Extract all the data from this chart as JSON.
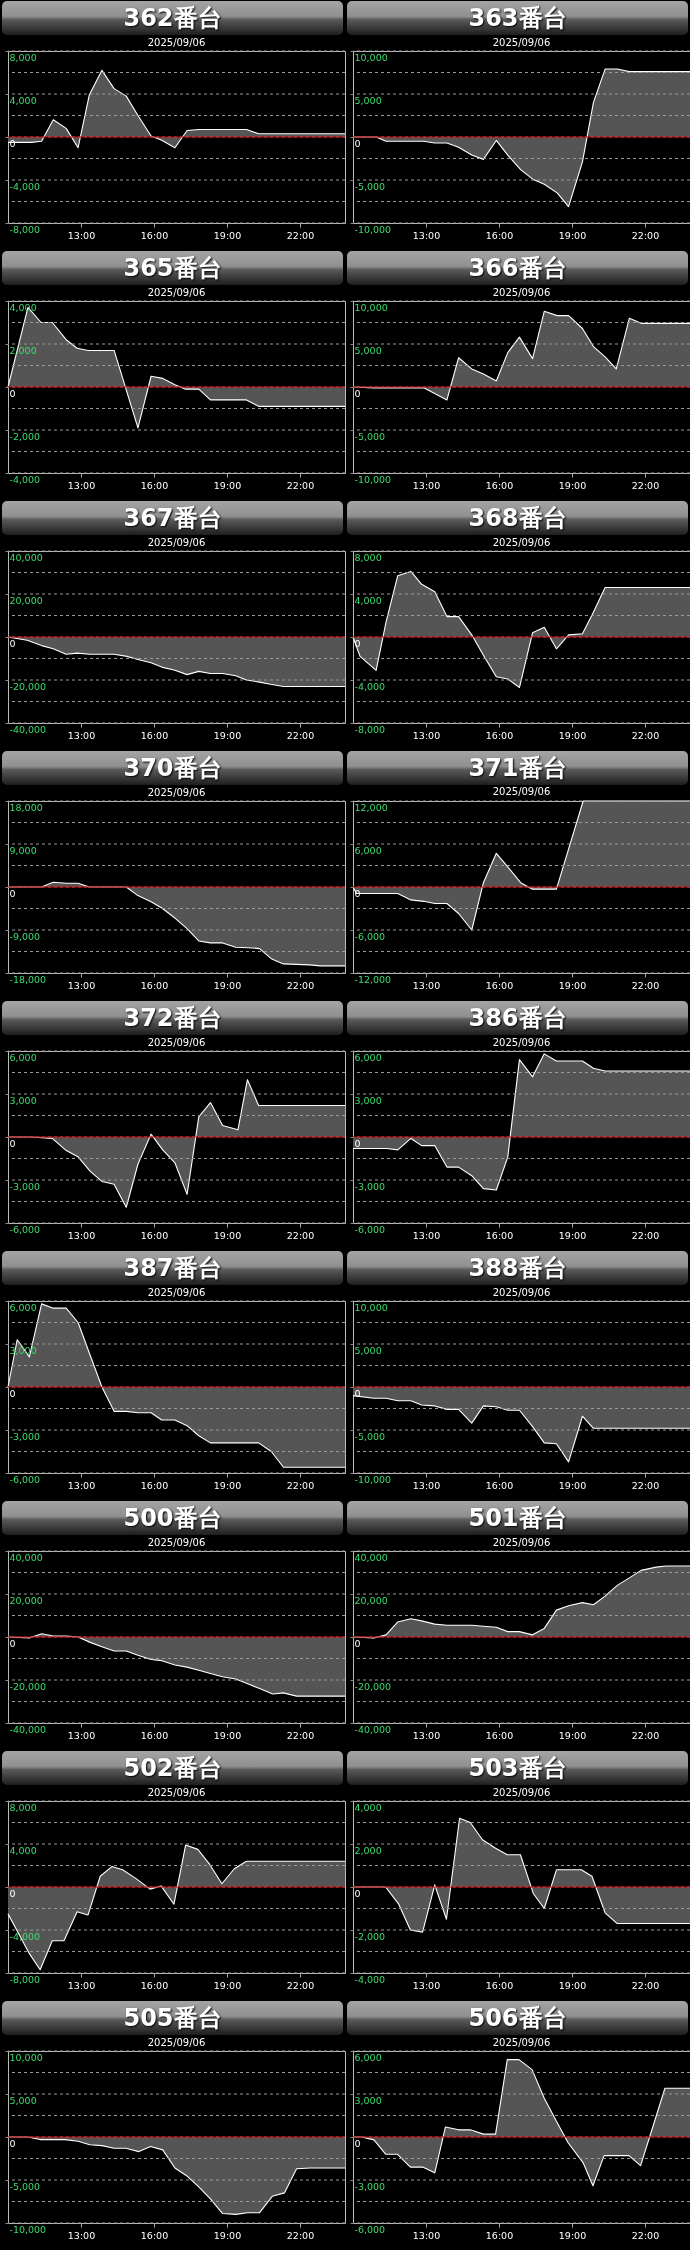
{
  "chart_data": [
    {
      "type": "area",
      "title": "362番台",
      "subtitle": "2025/09/06",
      "color": "#ffffff",
      "grid": "y",
      "xlim": [
        10,
        23.85
      ],
      "xticks": [
        {
          "value": 13,
          "label": "13:00"
        },
        {
          "value": 16,
          "label": "16:00"
        },
        {
          "value": 19,
          "label": "19:00"
        },
        {
          "value": 22,
          "label": "22:00"
        }
      ],
      "ylim": [
        -8000,
        8000
      ],
      "yticks": [
        {
          "value": 8000,
          "label": "8,000"
        },
        {
          "value": 6000,
          "label": null
        },
        {
          "value": 4000,
          "label": "4,000"
        },
        {
          "value": 2000,
          "label": null
        },
        {
          "value": 0,
          "label": "0"
        },
        {
          "value": -2000,
          "label": null
        },
        {
          "value": -4000,
          "label": "-4,000"
        },
        {
          "value": -6000,
          "label": null
        },
        {
          "value": -8000,
          "label": "-8,000"
        }
      ],
      "ref_lines": [
        {
          "axis": "y",
          "value": 0,
          "color": "#cc0000"
        }
      ],
      "x": [
        10,
        10.96,
        11.38,
        11.86,
        12.39,
        12.88,
        13.34,
        13.86,
        14.36,
        14.86,
        15.34,
        15.88,
        16.32,
        16.86,
        17.36,
        17.84,
        19.8,
        20.3,
        23.85
      ],
      "values": [
        -500,
        -500,
        -400,
        1600,
        800,
        -1000,
        3900,
        6200,
        4500,
        3800,
        2000,
        100,
        -300,
        -1000,
        600,
        700,
        700,
        300,
        300
      ]
    },
    {
      "type": "area",
      "title": "363番台",
      "subtitle": "2025/09/06",
      "color": "#ffffff",
      "grid": "y",
      "xlim": [
        10,
        23.85
      ],
      "xticks": [
        {
          "value": 13,
          "label": "13:00"
        },
        {
          "value": 16,
          "label": "16:00"
        },
        {
          "value": 19,
          "label": "19:00"
        },
        {
          "value": 22,
          "label": "22:00"
        }
      ],
      "ylim": [
        -10000,
        10000
      ],
      "yticks": [
        {
          "value": 10000,
          "label": "10,000"
        },
        {
          "value": 7500,
          "label": null
        },
        {
          "value": 5000,
          "label": "5,000"
        },
        {
          "value": 2500,
          "label": null
        },
        {
          "value": 0,
          "label": "0"
        },
        {
          "value": -2500,
          "label": null
        },
        {
          "value": -5000,
          "label": "-5,000"
        },
        {
          "value": -7500,
          "label": null
        },
        {
          "value": -10000,
          "label": "-10,000"
        }
      ],
      "ref_lines": [
        {
          "axis": "y",
          "value": 0,
          "color": "#cc0000"
        }
      ],
      "x": [
        10,
        10.95,
        11.36,
        12.91,
        13.36,
        13.86,
        14.34,
        14.88,
        15.36,
        15.89,
        16.36,
        16.89,
        17.39,
        17.86,
        18.39,
        18.86,
        19.43,
        19.88,
        20.36,
        20.86,
        21.36,
        23.85
      ],
      "values": [
        0,
        0,
        -500,
        -500,
        -700,
        -700,
        -1200,
        -2100,
        -2600,
        -400,
        -2100,
        -3800,
        -4900,
        -5500,
        -6500,
        -8100,
        -2900,
        4000,
        7900,
        7900,
        7600,
        7600
      ]
    },
    {
      "type": "area",
      "title": "365番台",
      "subtitle": "2025/09/06",
      "color": "#ffffff",
      "grid": "y",
      "xlim": [
        10,
        23.85
      ],
      "xticks": [
        {
          "value": 13,
          "label": "13:00"
        },
        {
          "value": 16,
          "label": "16:00"
        },
        {
          "value": 19,
          "label": "19:00"
        },
        {
          "value": 22,
          "label": "22:00"
        }
      ],
      "ylim": [
        -4000,
        4000
      ],
      "yticks": [
        {
          "value": 4000,
          "label": "4,000"
        },
        {
          "value": 3000,
          "label": null
        },
        {
          "value": 2000,
          "label": "2,000"
        },
        {
          "value": 1000,
          "label": null
        },
        {
          "value": 0,
          "label": "0"
        },
        {
          "value": -1000,
          "label": null
        },
        {
          "value": -2000,
          "label": "-2,000"
        },
        {
          "value": -3000,
          "label": null
        },
        {
          "value": -4000,
          "label": "-4,000"
        }
      ],
      "ref_lines": [
        {
          "axis": "y",
          "value": 0,
          "color": "#cc0000"
        }
      ],
      "x": [
        10,
        10.82,
        11.36,
        11.82,
        12.39,
        12.84,
        13.29,
        14.36,
        15.34,
        15.88,
        16.36,
        16.86,
        17.3,
        17.84,
        18.32,
        19.8,
        20.3,
        23.85
      ],
      "values": [
        0,
        3700,
        3000,
        3000,
        2200,
        1800,
        1700,
        1700,
        -1900,
        500,
        400,
        100,
        -100,
        -100,
        -600,
        -600,
        -900,
        -900
      ]
    },
    {
      "type": "area",
      "title": "366番台",
      "subtitle": "2025/09/06",
      "color": "#ffffff",
      "grid": "y",
      "xlim": [
        10,
        23.85
      ],
      "xticks": [
        {
          "value": 13,
          "label": "13:00"
        },
        {
          "value": 16,
          "label": "16:00"
        },
        {
          "value": 19,
          "label": "19:00"
        },
        {
          "value": 22,
          "label": "22:00"
        }
      ],
      "ylim": [
        -10000,
        10000
      ],
      "yticks": [
        {
          "value": 10000,
          "label": "10,000"
        },
        {
          "value": 7500,
          "label": null
        },
        {
          "value": 5000,
          "label": "5,000"
        },
        {
          "value": 2500,
          "label": null
        },
        {
          "value": 0,
          "label": "0"
        },
        {
          "value": -2500,
          "label": null
        },
        {
          "value": -5000,
          "label": "-5,000"
        },
        {
          "value": -7500,
          "label": null
        },
        {
          "value": -10000,
          "label": "-10,000"
        }
      ],
      "ref_lines": [
        {
          "axis": "y",
          "value": 0,
          "color": "#cc0000"
        }
      ],
      "x": [
        10,
        10.86,
        12.91,
        13.86,
        14.34,
        14.88,
        15.36,
        15.89,
        16.36,
        16.84,
        17.38,
        17.86,
        18.39,
        18.86,
        19.43,
        19.88,
        20.36,
        20.82,
        21.36,
        21.84,
        23.85
      ],
      "values": [
        0,
        -100,
        -100,
        -1500,
        3400,
        2100,
        1500,
        700,
        4000,
        5800,
        3300,
        8800,
        8300,
        8300,
        6800,
        4700,
        3500,
        2100,
        8000,
        7400,
        7400
      ]
    },
    {
      "type": "area",
      "title": "367番台",
      "subtitle": "2025/09/06",
      "color": "#ffffff",
      "grid": "y",
      "xlim": [
        10,
        23.85
      ],
      "xticks": [
        {
          "value": 13,
          "label": "13:00"
        },
        {
          "value": 16,
          "label": "16:00"
        },
        {
          "value": 19,
          "label": "19:00"
        },
        {
          "value": 22,
          "label": "22:00"
        }
      ],
      "ylim": [
        -40000,
        40000
      ],
      "yticks": [
        {
          "value": 40000,
          "label": "40,000"
        },
        {
          "value": 30000,
          "label": null
        },
        {
          "value": 20000,
          "label": "20,000"
        },
        {
          "value": 10000,
          "label": null
        },
        {
          "value": 0,
          "label": "0"
        },
        {
          "value": -10000,
          "label": null
        },
        {
          "value": -20000,
          "label": "-20,000"
        },
        {
          "value": -30000,
          "label": null
        },
        {
          "value": -40000,
          "label": "-40,000"
        }
      ],
      "ref_lines": [
        {
          "axis": "y",
          "value": 0,
          "color": "#cc0000"
        }
      ],
      "x": [
        10,
        10.79,
        11.38,
        11.86,
        12.39,
        12.84,
        13.38,
        14.36,
        14.89,
        15.34,
        15.88,
        16.32,
        16.86,
        17.36,
        17.84,
        18.32,
        18.82,
        19.36,
        19.8,
        20.34,
        20.79,
        21.32,
        23.85
      ],
      "values": [
        0,
        -1500,
        -4000,
        -5500,
        -8000,
        -7500,
        -8000,
        -8000,
        -9000,
        -10500,
        -12000,
        -14000,
        -15500,
        -17500,
        -16000,
        -17000,
        -17000,
        -18000,
        -20000,
        -21000,
        -22000,
        -23000,
        -23000
      ]
    },
    {
      "type": "area",
      "title": "368番台",
      "subtitle": "2025/09/06",
      "color": "#ffffff",
      "grid": "y",
      "xlim": [
        10,
        23.85
      ],
      "xticks": [
        {
          "value": 13,
          "label": "13:00"
        },
        {
          "value": 16,
          "label": "16:00"
        },
        {
          "value": 19,
          "label": "19:00"
        },
        {
          "value": 22,
          "label": "22:00"
        }
      ],
      "ylim": [
        -8000,
        8000
      ],
      "yticks": [
        {
          "value": 8000,
          "label": "8,000"
        },
        {
          "value": 6000,
          "label": null
        },
        {
          "value": 4000,
          "label": "4,000"
        },
        {
          "value": 2000,
          "label": null
        },
        {
          "value": 0,
          "label": "0"
        },
        {
          "value": -2000,
          "label": null
        },
        {
          "value": -4000,
          "label": "-4,000"
        },
        {
          "value": -6000,
          "label": null
        },
        {
          "value": -8000,
          "label": "-8,000"
        }
      ],
      "ref_lines": [
        {
          "axis": "y",
          "value": 0,
          "color": "#cc0000"
        }
      ],
      "x": [
        10,
        10.29,
        10.95,
        11.36,
        11.84,
        12.38,
        12.82,
        13.36,
        13.86,
        14.34,
        14.88,
        15.36,
        15.89,
        16.36,
        16.84,
        17.38,
        17.86,
        18.36,
        18.86,
        19.43,
        19.88,
        20.36,
        23.85
      ],
      "values": [
        0,
        -1800,
        -3100,
        1400,
        5700,
        6100,
        4900,
        4200,
        1900,
        1900,
        200,
        -1700,
        -3700,
        -3900,
        -4700,
        400,
        900,
        -1100,
        200,
        300,
        2300,
        4600,
        4600
      ]
    },
    {
      "type": "area",
      "title": "370番台",
      "subtitle": "2025/09/06",
      "color": "#ffffff",
      "grid": "y",
      "xlim": [
        10,
        23.85
      ],
      "xticks": [
        {
          "value": 13,
          "label": "13:00"
        },
        {
          "value": 16,
          "label": "16:00"
        },
        {
          "value": 19,
          "label": "19:00"
        },
        {
          "value": 22,
          "label": "22:00"
        }
      ],
      "ylim": [
        -18000,
        18000
      ],
      "yticks": [
        {
          "value": 18000,
          "label": "18,000"
        },
        {
          "value": 13500,
          "label": null
        },
        {
          "value": 9000,
          "label": "9,000"
        },
        {
          "value": 4500,
          "label": null
        },
        {
          "value": 0,
          "label": "0"
        },
        {
          "value": -4500,
          "label": null
        },
        {
          "value": -9000,
          "label": "-9,000"
        },
        {
          "value": -13500,
          "label": null
        },
        {
          "value": -18000,
          "label": "-18,000"
        }
      ],
      "ref_lines": [
        {
          "axis": "y",
          "value": 0,
          "color": "#cc0000"
        }
      ],
      "x": [
        10,
        11.38,
        11.86,
        12.39,
        12.88,
        13.34,
        14.86,
        15.34,
        15.88,
        16.32,
        16.86,
        17.36,
        17.84,
        18.32,
        18.82,
        19.36,
        19.89,
        20.34,
        20.82,
        21.32,
        21.86,
        22.39,
        22.84,
        23.85
      ],
      "values": [
        0,
        0,
        1000,
        800,
        800,
        0,
        0,
        -1800,
        -3100,
        -4400,
        -6500,
        -8700,
        -11300,
        -11700,
        -11700,
        -12600,
        -12700,
        -12900,
        -15000,
        -16100,
        -16200,
        -16300,
        -16500,
        -16500
      ]
    },
    {
      "type": "area",
      "title": "371番台",
      "subtitle": "2025/09/06",
      "color": "#ffffff",
      "grid": "y",
      "xlim": [
        10,
        23.85
      ],
      "xticks": [
        {
          "value": 13,
          "label": "13:00"
        },
        {
          "value": 16,
          "label": "16:00"
        },
        {
          "value": 19,
          "label": "19:00"
        },
        {
          "value": 22,
          "label": "22:00"
        }
      ],
      "ylim": [
        -12000,
        12000
      ],
      "yticks": [
        {
          "value": 12000,
          "label": "12,000"
        },
        {
          "value": 9000,
          "label": null
        },
        {
          "value": 6000,
          "label": "6,000"
        },
        {
          "value": 3000,
          "label": null
        },
        {
          "value": 0,
          "label": "0"
        },
        {
          "value": -3000,
          "label": null
        },
        {
          "value": -6000,
          "label": "-6,000"
        },
        {
          "value": -9000,
          "label": null
        },
        {
          "value": -12000,
          "label": "-12,000"
        }
      ],
      "ref_lines": [
        {
          "axis": "y",
          "value": 0,
          "color": "#cc0000"
        }
      ],
      "x": [
        10,
        10.14,
        11.84,
        12.38,
        12.91,
        13.36,
        13.86,
        14.34,
        14.88,
        15.36,
        15.89,
        16.36,
        16.89,
        17.38,
        18.36,
        19.46,
        23.85
      ],
      "values": [
        0,
        -900,
        -900,
        -1800,
        -2000,
        -2300,
        -2300,
        -3700,
        -6000,
        600,
        4700,
        2800,
        600,
        -300,
        -300,
        12000,
        12000
      ]
    },
    {
      "type": "area",
      "title": "372番台",
      "subtitle": "2025/09/06",
      "color": "#ffffff",
      "grid": "y",
      "xlim": [
        10,
        23.85
      ],
      "xticks": [
        {
          "value": 13,
          "label": "13:00"
        },
        {
          "value": 16,
          "label": "16:00"
        },
        {
          "value": 19,
          "label": "19:00"
        },
        {
          "value": 22,
          "label": "22:00"
        }
      ],
      "ylim": [
        -6000,
        6000
      ],
      "yticks": [
        {
          "value": 6000,
          "label": "6,000"
        },
        {
          "value": 4500,
          "label": null
        },
        {
          "value": 3000,
          "label": "3,000"
        },
        {
          "value": 1500,
          "label": null
        },
        {
          "value": 0,
          "label": "0"
        },
        {
          "value": -1500,
          "label": null
        },
        {
          "value": -3000,
          "label": "-3,000"
        },
        {
          "value": -4500,
          "label": null
        },
        {
          "value": -6000,
          "label": "-6,000"
        }
      ],
      "ref_lines": [
        {
          "axis": "y",
          "value": 0,
          "color": "#cc0000"
        }
      ],
      "x": [
        10,
        10.96,
        11.82,
        12.36,
        12.89,
        13.38,
        13.86,
        14.36,
        14.86,
        15.34,
        15.88,
        16.36,
        16.86,
        17.36,
        17.84,
        18.32,
        18.82,
        19.45,
        19.84,
        20.3,
        23.85
      ],
      "values": [
        0,
        0,
        -100,
        -900,
        -1400,
        -2400,
        -3100,
        -3300,
        -4900,
        -1900,
        200,
        -900,
        -1800,
        -4000,
        1400,
        2400,
        800,
        500,
        4000,
        2200,
        2200
      ]
    },
    {
      "type": "area",
      "title": "386番台",
      "subtitle": "2025/09/06",
      "color": "#ffffff",
      "grid": "y",
      "xlim": [
        10,
        23.85
      ],
      "xticks": [
        {
          "value": 13,
          "label": "13:00"
        },
        {
          "value": 16,
          "label": "16:00"
        },
        {
          "value": 19,
          "label": "19:00"
        },
        {
          "value": 22,
          "label": "22:00"
        }
      ],
      "ylim": [
        -6000,
        6000
      ],
      "yticks": [
        {
          "value": 6000,
          "label": "6,000"
        },
        {
          "value": 4500,
          "label": null
        },
        {
          "value": 3000,
          "label": "3,000"
        },
        {
          "value": 1500,
          "label": null
        },
        {
          "value": 0,
          "label": "0"
        },
        {
          "value": -1500,
          "label": null
        },
        {
          "value": -3000,
          "label": "-3,000"
        },
        {
          "value": -4500,
          "label": null
        },
        {
          "value": -6000,
          "label": "-6,000"
        }
      ],
      "ref_lines": [
        {
          "axis": "y",
          "value": 0,
          "color": "#cc0000"
        }
      ],
      "x": [
        10,
        11.39,
        11.84,
        12.38,
        12.82,
        13.36,
        13.86,
        14.34,
        14.88,
        15.36,
        15.89,
        16.36,
        16.84,
        17.38,
        17.86,
        18.36,
        19.43,
        19.88,
        20.36,
        23.85
      ],
      "values": [
        -800,
        -800,
        -900,
        -100,
        -600,
        -600,
        -2100,
        -2100,
        -2700,
        -3600,
        -3700,
        -1400,
        5400,
        4200,
        5800,
        5300,
        5300,
        4800,
        4600,
        4600
      ]
    },
    {
      "type": "area",
      "title": "387番台",
      "subtitle": "2025/09/06",
      "color": "#ffffff",
      "grid": "y",
      "xlim": [
        10,
        23.85
      ],
      "xticks": [
        {
          "value": 13,
          "label": "13:00"
        },
        {
          "value": 16,
          "label": "16:00"
        },
        {
          "value": 19,
          "label": "19:00"
        },
        {
          "value": 22,
          "label": "22:00"
        }
      ],
      "ylim": [
        -6000,
        6000
      ],
      "yticks": [
        {
          "value": 6000,
          "label": "6,000"
        },
        {
          "value": 4500,
          "label": null
        },
        {
          "value": 3000,
          "label": "3,000"
        },
        {
          "value": 1500,
          "label": null
        },
        {
          "value": 0,
          "label": "0"
        },
        {
          "value": -1500,
          "label": null
        },
        {
          "value": -3000,
          "label": "-3,000"
        },
        {
          "value": -4500,
          "label": null
        },
        {
          "value": -6000,
          "label": "-6,000"
        }
      ],
      "ref_lines": [
        {
          "axis": "y",
          "value": 0,
          "color": "#cc0000"
        }
      ],
      "x": [
        10,
        10.38,
        10.88,
        11.38,
        11.86,
        12.39,
        12.88,
        13.38,
        13.86,
        14.36,
        14.86,
        15.34,
        15.88,
        16.32,
        16.86,
        17.36,
        17.84,
        18.32,
        20.3,
        20.82,
        21.32,
        23.85
      ],
      "values": [
        0,
        3300,
        2100,
        5800,
        5500,
        5500,
        4500,
        2200,
        0,
        -1700,
        -1700,
        -1800,
        -1800,
        -2300,
        -2300,
        -2700,
        -3400,
        -3900,
        -3900,
        -4500,
        -5600,
        -5600
      ]
    },
    {
      "type": "area",
      "title": "388番台",
      "subtitle": "2025/09/06",
      "color": "#ffffff",
      "grid": "y",
      "xlim": [
        10,
        23.85
      ],
      "xticks": [
        {
          "value": 13,
          "label": "13:00"
        },
        {
          "value": 16,
          "label": "16:00"
        },
        {
          "value": 19,
          "label": "19:00"
        },
        {
          "value": 22,
          "label": "22:00"
        }
      ],
      "ylim": [
        -10000,
        10000
      ],
      "yticks": [
        {
          "value": 10000,
          "label": "10,000"
        },
        {
          "value": 7500,
          "label": null
        },
        {
          "value": 5000,
          "label": "5,000"
        },
        {
          "value": 2500,
          "label": null
        },
        {
          "value": 0,
          "label": "0"
        },
        {
          "value": -2500,
          "label": null
        },
        {
          "value": -5000,
          "label": "-5,000"
        },
        {
          "value": -7500,
          "label": null
        },
        {
          "value": -10000,
          "label": "-10,000"
        }
      ],
      "ref_lines": [
        {
          "axis": "y",
          "value": 0,
          "color": "#cc0000"
        }
      ],
      "x": [
        10,
        10.86,
        11.36,
        11.84,
        12.38,
        12.82,
        13.36,
        13.86,
        14.34,
        14.88,
        15.36,
        15.89,
        16.36,
        16.84,
        17.38,
        17.86,
        18.36,
        18.86,
        19.43,
        19.88,
        23.85
      ],
      "values": [
        -1000,
        -1300,
        -1300,
        -1600,
        -1600,
        -2100,
        -2200,
        -2600,
        -2600,
        -4200,
        -2200,
        -2300,
        -2700,
        -2700,
        -4600,
        -6500,
        -6600,
        -8700,
        -3400,
        -4800,
        -4800
      ]
    },
    {
      "type": "area",
      "title": "500番台",
      "subtitle": "2025/09/06",
      "color": "#ffffff",
      "grid": "y",
      "xlim": [
        10,
        23.85
      ],
      "xticks": [
        {
          "value": 13,
          "label": "13:00"
        },
        {
          "value": 16,
          "label": "16:00"
        },
        {
          "value": 19,
          "label": "19:00"
        },
        {
          "value": 22,
          "label": "22:00"
        }
      ],
      "ylim": [
        -40000,
        40000
      ],
      "yticks": [
        {
          "value": 40000,
          "label": "40,000"
        },
        {
          "value": 30000,
          "label": null
        },
        {
          "value": 20000,
          "label": "20,000"
        },
        {
          "value": 10000,
          "label": null
        },
        {
          "value": 0,
          "label": "0"
        },
        {
          "value": -10000,
          "label": null
        },
        {
          "value": -20000,
          "label": "-20,000"
        },
        {
          "value": -30000,
          "label": null
        },
        {
          "value": -40000,
          "label": "-40,000"
        }
      ],
      "ref_lines": [
        {
          "axis": "y",
          "value": 0,
          "color": "#cc0000"
        }
      ],
      "x": [
        10,
        10.88,
        11.38,
        11.86,
        12.39,
        12.88,
        13.38,
        13.86,
        14.36,
        14.86,
        15.34,
        15.88,
        16.32,
        16.86,
        17.36,
        17.84,
        18.32,
        18.82,
        19.36,
        19.8,
        20.34,
        20.88,
        21.32,
        21.86,
        23.85
      ],
      "values": [
        0,
        -500,
        1500,
        500,
        500,
        0,
        -2500,
        -4500,
        -6500,
        -6500,
        -8500,
        -10500,
        -11000,
        -13000,
        -14000,
        -15500,
        -17000,
        -18500,
        -19500,
        -21500,
        -24000,
        -26500,
        -26000,
        -27500,
        -27500
      ]
    },
    {
      "type": "area",
      "title": "501番台",
      "subtitle": "2025/09/06",
      "color": "#ffffff",
      "grid": "y",
      "xlim": [
        10,
        23.85
      ],
      "xticks": [
        {
          "value": 13,
          "label": "13:00"
        },
        {
          "value": 16,
          "label": "16:00"
        },
        {
          "value": 19,
          "label": "19:00"
        },
        {
          "value": 22,
          "label": "22:00"
        }
      ],
      "ylim": [
        -40000,
        40000
      ],
      "yticks": [
        {
          "value": 40000,
          "label": "40,000"
        },
        {
          "value": 30000,
          "label": null
        },
        {
          "value": 20000,
          "label": "20,000"
        },
        {
          "value": 10000,
          "label": null
        },
        {
          "value": 0,
          "label": "0"
        },
        {
          "value": -10000,
          "label": null
        },
        {
          "value": -20000,
          "label": "-20,000"
        },
        {
          "value": -30000,
          "label": null
        },
        {
          "value": -40000,
          "label": "-40,000"
        }
      ],
      "ref_lines": [
        {
          "axis": "y",
          "value": 0,
          "color": "#cc0000"
        }
      ],
      "x": [
        10,
        10.86,
        11.36,
        11.84,
        12.38,
        12.82,
        13.36,
        13.86,
        14.34,
        14.88,
        15.36,
        15.89,
        16.36,
        16.84,
        17.38,
        17.86,
        18.36,
        18.86,
        19.43,
        19.88,
        20.36,
        20.86,
        21.36,
        21.84,
        22.46,
        22.86,
        23.85
      ],
      "values": [
        0,
        -500,
        1000,
        7000,
        8500,
        7500,
        6000,
        5500,
        5500,
        5500,
        5000,
        4500,
        2500,
        2500,
        1000,
        4000,
        12500,
        14500,
        16000,
        15000,
        19000,
        24000,
        27500,
        31000,
        32500,
        33000,
        33000
      ]
    },
    {
      "type": "area",
      "title": "502番台",
      "subtitle": "2025/09/06",
      "color": "#ffffff",
      "grid": "y",
      "xlim": [
        10,
        23.85
      ],
      "xticks": [
        {
          "value": 13,
          "label": "13:00"
        },
        {
          "value": 16,
          "label": "16:00"
        },
        {
          "value": 19,
          "label": "19:00"
        },
        {
          "value": 22,
          "label": "22:00"
        }
      ],
      "ylim": [
        -8000,
        8000
      ],
      "yticks": [
        {
          "value": 8000,
          "label": "8,000"
        },
        {
          "value": 6000,
          "label": null
        },
        {
          "value": 4000,
          "label": "4,000"
        },
        {
          "value": 2000,
          "label": null
        },
        {
          "value": 0,
          "label": "0"
        },
        {
          "value": -2000,
          "label": null
        },
        {
          "value": -4000,
          "label": "-4,000"
        },
        {
          "value": -6000,
          "label": null
        },
        {
          "value": -8000,
          "label": "-8,000"
        }
      ],
      "ref_lines": [
        {
          "axis": "y",
          "value": 0,
          "color": "#cc0000"
        }
      ],
      "x": [
        10,
        10.43,
        10.88,
        11.32,
        11.82,
        12.3,
        12.84,
        13.29,
        13.79,
        14.27,
        14.71,
        15.25,
        15.84,
        16.29,
        16.82,
        17.3,
        17.8,
        18.29,
        18.79,
        19.3,
        19.8,
        23.85
      ],
      "values": [
        -2500,
        -4300,
        -6200,
        -7700,
        -5000,
        -5000,
        -2300,
        -2600,
        1000,
        1900,
        1600,
        800,
        -200,
        100,
        -1600,
        3900,
        3500,
        2100,
        300,
        1700,
        2400,
        2400
      ]
    },
    {
      "type": "area",
      "title": "503番台",
      "subtitle": "2025/09/06",
      "color": "#ffffff",
      "grid": "y",
      "xlim": [
        10,
        23.85
      ],
      "xticks": [
        {
          "value": 13,
          "label": "13:00"
        },
        {
          "value": 16,
          "label": "16:00"
        },
        {
          "value": 19,
          "label": "19:00"
        },
        {
          "value": 22,
          "label": "22:00"
        }
      ],
      "ylim": [
        -4000,
        4000
      ],
      "yticks": [
        {
          "value": 4000,
          "label": "4,000"
        },
        {
          "value": 3000,
          "label": null
        },
        {
          "value": 2000,
          "label": "2,000"
        },
        {
          "value": 1000,
          "label": null
        },
        {
          "value": 0,
          "label": "0"
        },
        {
          "value": -1000,
          "label": null
        },
        {
          "value": -2000,
          "label": "-2,000"
        },
        {
          "value": -3000,
          "label": null
        },
        {
          "value": -4000,
          "label": "-4,000"
        }
      ],
      "ref_lines": [
        {
          "axis": "y",
          "value": 0,
          "color": "#cc0000"
        }
      ],
      "x": [
        10,
        11.34,
        11.88,
        12.36,
        12.86,
        13.36,
        13.84,
        14.38,
        14.82,
        15.32,
        15.86,
        16.34,
        16.88,
        17.41,
        17.86,
        18.36,
        19.38,
        19.82,
        20.36,
        20.86,
        23.85
      ],
      "values": [
        0,
        0,
        -800,
        -2000,
        -2100,
        100,
        -1500,
        3200,
        3000,
        2200,
        1800,
        1500,
        1500,
        -300,
        -1000,
        800,
        800,
        500,
        -1200,
        -1700,
        -1700
      ]
    },
    {
      "type": "area",
      "title": "505番台",
      "subtitle": "2025/09/06",
      "color": "#ffffff",
      "grid": "y",
      "xlim": [
        10,
        23.85
      ],
      "xticks": [
        {
          "value": 13,
          "label": "13:00"
        },
        {
          "value": 16,
          "label": "16:00"
        },
        {
          "value": 19,
          "label": "19:00"
        },
        {
          "value": 22,
          "label": "22:00"
        }
      ],
      "ylim": [
        -10000,
        10000
      ],
      "yticks": [
        {
          "value": 10000,
          "label": "10,000"
        },
        {
          "value": 7500,
          "label": null
        },
        {
          "value": 5000,
          "label": "5,000"
        },
        {
          "value": 2500,
          "label": null
        },
        {
          "value": 0,
          "label": "0"
        },
        {
          "value": -2500,
          "label": null
        },
        {
          "value": -5000,
          "label": "-5,000"
        },
        {
          "value": -7500,
          "label": null
        },
        {
          "value": -10000,
          "label": "-10,000"
        }
      ],
      "ref_lines": [
        {
          "axis": "y",
          "value": 0,
          "color": "#cc0000"
        }
      ],
      "x": [
        10,
        10.82,
        11.32,
        12.34,
        12.88,
        13.36,
        13.86,
        14.36,
        14.84,
        15.38,
        15.86,
        16.36,
        16.86,
        17.34,
        17.84,
        18.32,
        18.82,
        19.36,
        19.84,
        20.34,
        20.86,
        21.36,
        21.86,
        22.43,
        23.85
      ],
      "values": [
        0,
        0,
        -300,
        -300,
        -500,
        -900,
        -1000,
        -1300,
        -1300,
        -1700,
        -1100,
        -1500,
        -3600,
        -4500,
        -5800,
        -7200,
        -8900,
        -9000,
        -8800,
        -8800,
        -6900,
        -6500,
        -3700,
        -3600,
        -3600
      ]
    },
    {
      "type": "area",
      "title": "506番台",
      "subtitle": "2025/09/06",
      "color": "#ffffff",
      "grid": "y",
      "xlim": [
        10,
        23.85
      ],
      "xticks": [
        {
          "value": 13,
          "label": "13:00"
        },
        {
          "value": 16,
          "label": "16:00"
        },
        {
          "value": 19,
          "label": "19:00"
        },
        {
          "value": 22,
          "label": "22:00"
        }
      ],
      "ylim": [
        -6000,
        6000
      ],
      "yticks": [
        {
          "value": 6000,
          "label": "6,000"
        },
        {
          "value": 4500,
          "label": null
        },
        {
          "value": 3000,
          "label": "3,000"
        },
        {
          "value": 1500,
          "label": null
        },
        {
          "value": 0,
          "label": "0"
        },
        {
          "value": -1500,
          "label": null
        },
        {
          "value": -3000,
          "label": "-3,000"
        },
        {
          "value": -4500,
          "label": null
        },
        {
          "value": -6000,
          "label": "-6,000"
        }
      ],
      "ref_lines": [
        {
          "axis": "y",
          "value": 0,
          "color": "#cc0000"
        }
      ],
      "x": [
        10,
        10.36,
        10.86,
        11.34,
        11.82,
        12.36,
        12.86,
        13.36,
        13.8,
        14.34,
        14.82,
        15.36,
        15.86,
        16.34,
        16.82,
        17.36,
        17.86,
        18.36,
        18.84,
        19.46,
        19.86,
        20.32,
        21.34,
        21.82,
        22.32,
        22.82,
        23.85
      ],
      "values": [
        0,
        0,
        -200,
        -1200,
        -1200,
        -2100,
        -2100,
        -2500,
        700,
        500,
        500,
        200,
        200,
        5400,
        5400,
        4700,
        2700,
        1100,
        -400,
        -1800,
        -3400,
        -1300,
        -1300,
        -2000,
        700,
        3400,
        3400
      ]
    }
  ]
}
